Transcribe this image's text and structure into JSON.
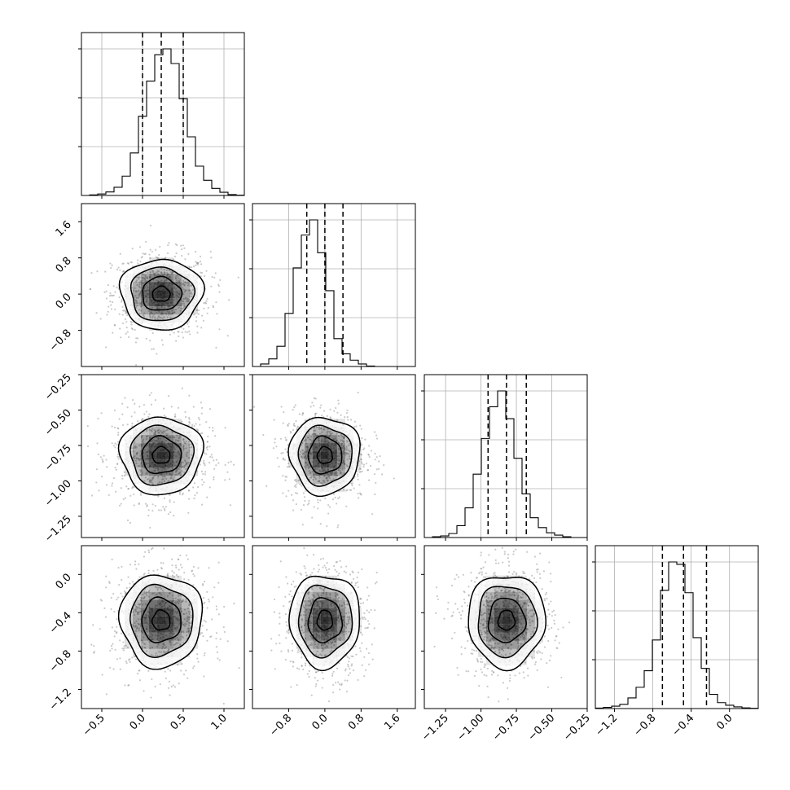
{
  "chart_data": {
    "type": "corner",
    "grid": true,
    "parameters": [
      {
        "index": 0,
        "range": [
          -0.75,
          1.25
        ],
        "ticks": [
          -0.5,
          0.0,
          0.5,
          1.0
        ],
        "tick_labels": [
          "−0.5",
          "0.0",
          "0.5",
          "1.0"
        ],
        "quantiles": [
          0.0,
          0.23,
          0.5
        ],
        "histogram": {
          "bin_start": -0.75,
          "bin_width": 0.1,
          "counts": [
            0,
            2,
            5,
            12,
            28,
            66,
            145,
            270,
            390,
            480,
            500,
            450,
            330,
            200,
            100,
            52,
            24,
            11,
            3,
            1
          ]
        }
      },
      {
        "index": 1,
        "range": [
          -1.6,
          2.0
        ],
        "ticks": [
          -0.8,
          0.0,
          0.8,
          1.6
        ],
        "tick_labels": [
          "−0.8",
          "0.0",
          "0.8",
          "1.6"
        ],
        "quantiles": [
          -0.4,
          0.0,
          0.4
        ],
        "histogram": {
          "bin_start": -1.6,
          "bin_width": 0.18,
          "counts": [
            0,
            10,
            30,
            80,
            210,
            390,
            520,
            580,
            450,
            300,
            110,
            50,
            25,
            10,
            2,
            0,
            0,
            0,
            0,
            0
          ]
        }
      },
      {
        "index": 2,
        "range": [
          -1.4,
          -0.25
        ],
        "ticks": [
          -1.25,
          -1.0,
          -0.75,
          -0.5,
          -0.25
        ],
        "tick_labels": [
          "−1.25",
          "−1.00",
          "−0.75",
          "−0.50",
          "−0.25"
        ],
        "quantiles": [
          -0.95,
          -0.82,
          -0.68
        ],
        "histogram": {
          "bin_start": -1.4,
          "bin_width": 0.0575,
          "counts": [
            0,
            2,
            4,
            10,
            30,
            75,
            160,
            250,
            330,
            370,
            300,
            200,
            110,
            50,
            25,
            12,
            6,
            2,
            0,
            0
          ]
        }
      },
      {
        "index": 3,
        "range": [
          -1.4,
          0.3
        ],
        "ticks": [
          -1.2,
          -0.8,
          -0.4,
          0.0
        ],
        "tick_labels": [
          "−1.2",
          "−0.8",
          "−0.4",
          "0.0"
        ],
        "quantiles": [
          -0.7,
          -0.48,
          -0.24
        ],
        "histogram": {
          "bin_start": -1.4,
          "bin_width": 0.085,
          "counts": [
            2,
            5,
            10,
            18,
            45,
            90,
            160,
            290,
            500,
            620,
            610,
            490,
            300,
            170,
            60,
            25,
            14,
            7,
            3,
            1
          ]
        }
      }
    ],
    "y_tick_labels": {
      "1": [
        "−0.8",
        "0.0",
        "0.8",
        "1.6"
      ],
      "2": [
        "−1.25",
        "−1.00",
        "−0.75",
        "−0.50",
        "−0.25"
      ],
      "3": [
        "−1.2",
        "−0.8",
        "−0.4",
        "0.0"
      ]
    },
    "scatter": {
      "centers": {
        "0": 0.23,
        "1": 0.0,
        "2": -0.82,
        "3": -0.48
      },
      "spreads": {
        "0": 0.24,
        "1": 0.37,
        "2": 0.13,
        "3": 0.23
      },
      "point_color": "#8a8a8a",
      "contour_color": "#000000",
      "density_color": "#000000"
    }
  }
}
